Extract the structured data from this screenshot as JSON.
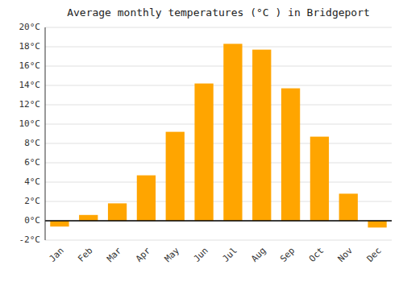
{
  "chart_data": {
    "type": "bar",
    "title": "Average monthly temperatures (°C ) in Bridgeport",
    "categories": [
      "Jan",
      "Feb",
      "Mar",
      "Apr",
      "May",
      "Jun",
      "Jul",
      "Aug",
      "Sep",
      "Oct",
      "Nov",
      "Dec"
    ],
    "values": [
      -0.6,
      0.6,
      1.8,
      4.7,
      9.2,
      14.2,
      18.3,
      17.7,
      13.7,
      8.7,
      2.8,
      -0.7
    ],
    "color": "#FFA500",
    "ylim": [
      -2,
      20
    ],
    "yticks": [
      {
        "value": -2,
        "label": "-2°C"
      },
      {
        "value": 0,
        "label": "0°C"
      },
      {
        "value": 2,
        "label": "2°C"
      },
      {
        "value": 4,
        "label": "4°C"
      },
      {
        "value": 6,
        "label": "6°C"
      },
      {
        "value": 8,
        "label": "8°C"
      },
      {
        "value": 10,
        "label": "10°C"
      },
      {
        "value": 12,
        "label": "12°C"
      },
      {
        "value": 14,
        "label": "14°C"
      },
      {
        "value": 16,
        "label": "16°C"
      },
      {
        "value": 18,
        "label": "18°C"
      },
      {
        "value": 20,
        "label": "20°C"
      }
    ],
    "grid": true
  }
}
